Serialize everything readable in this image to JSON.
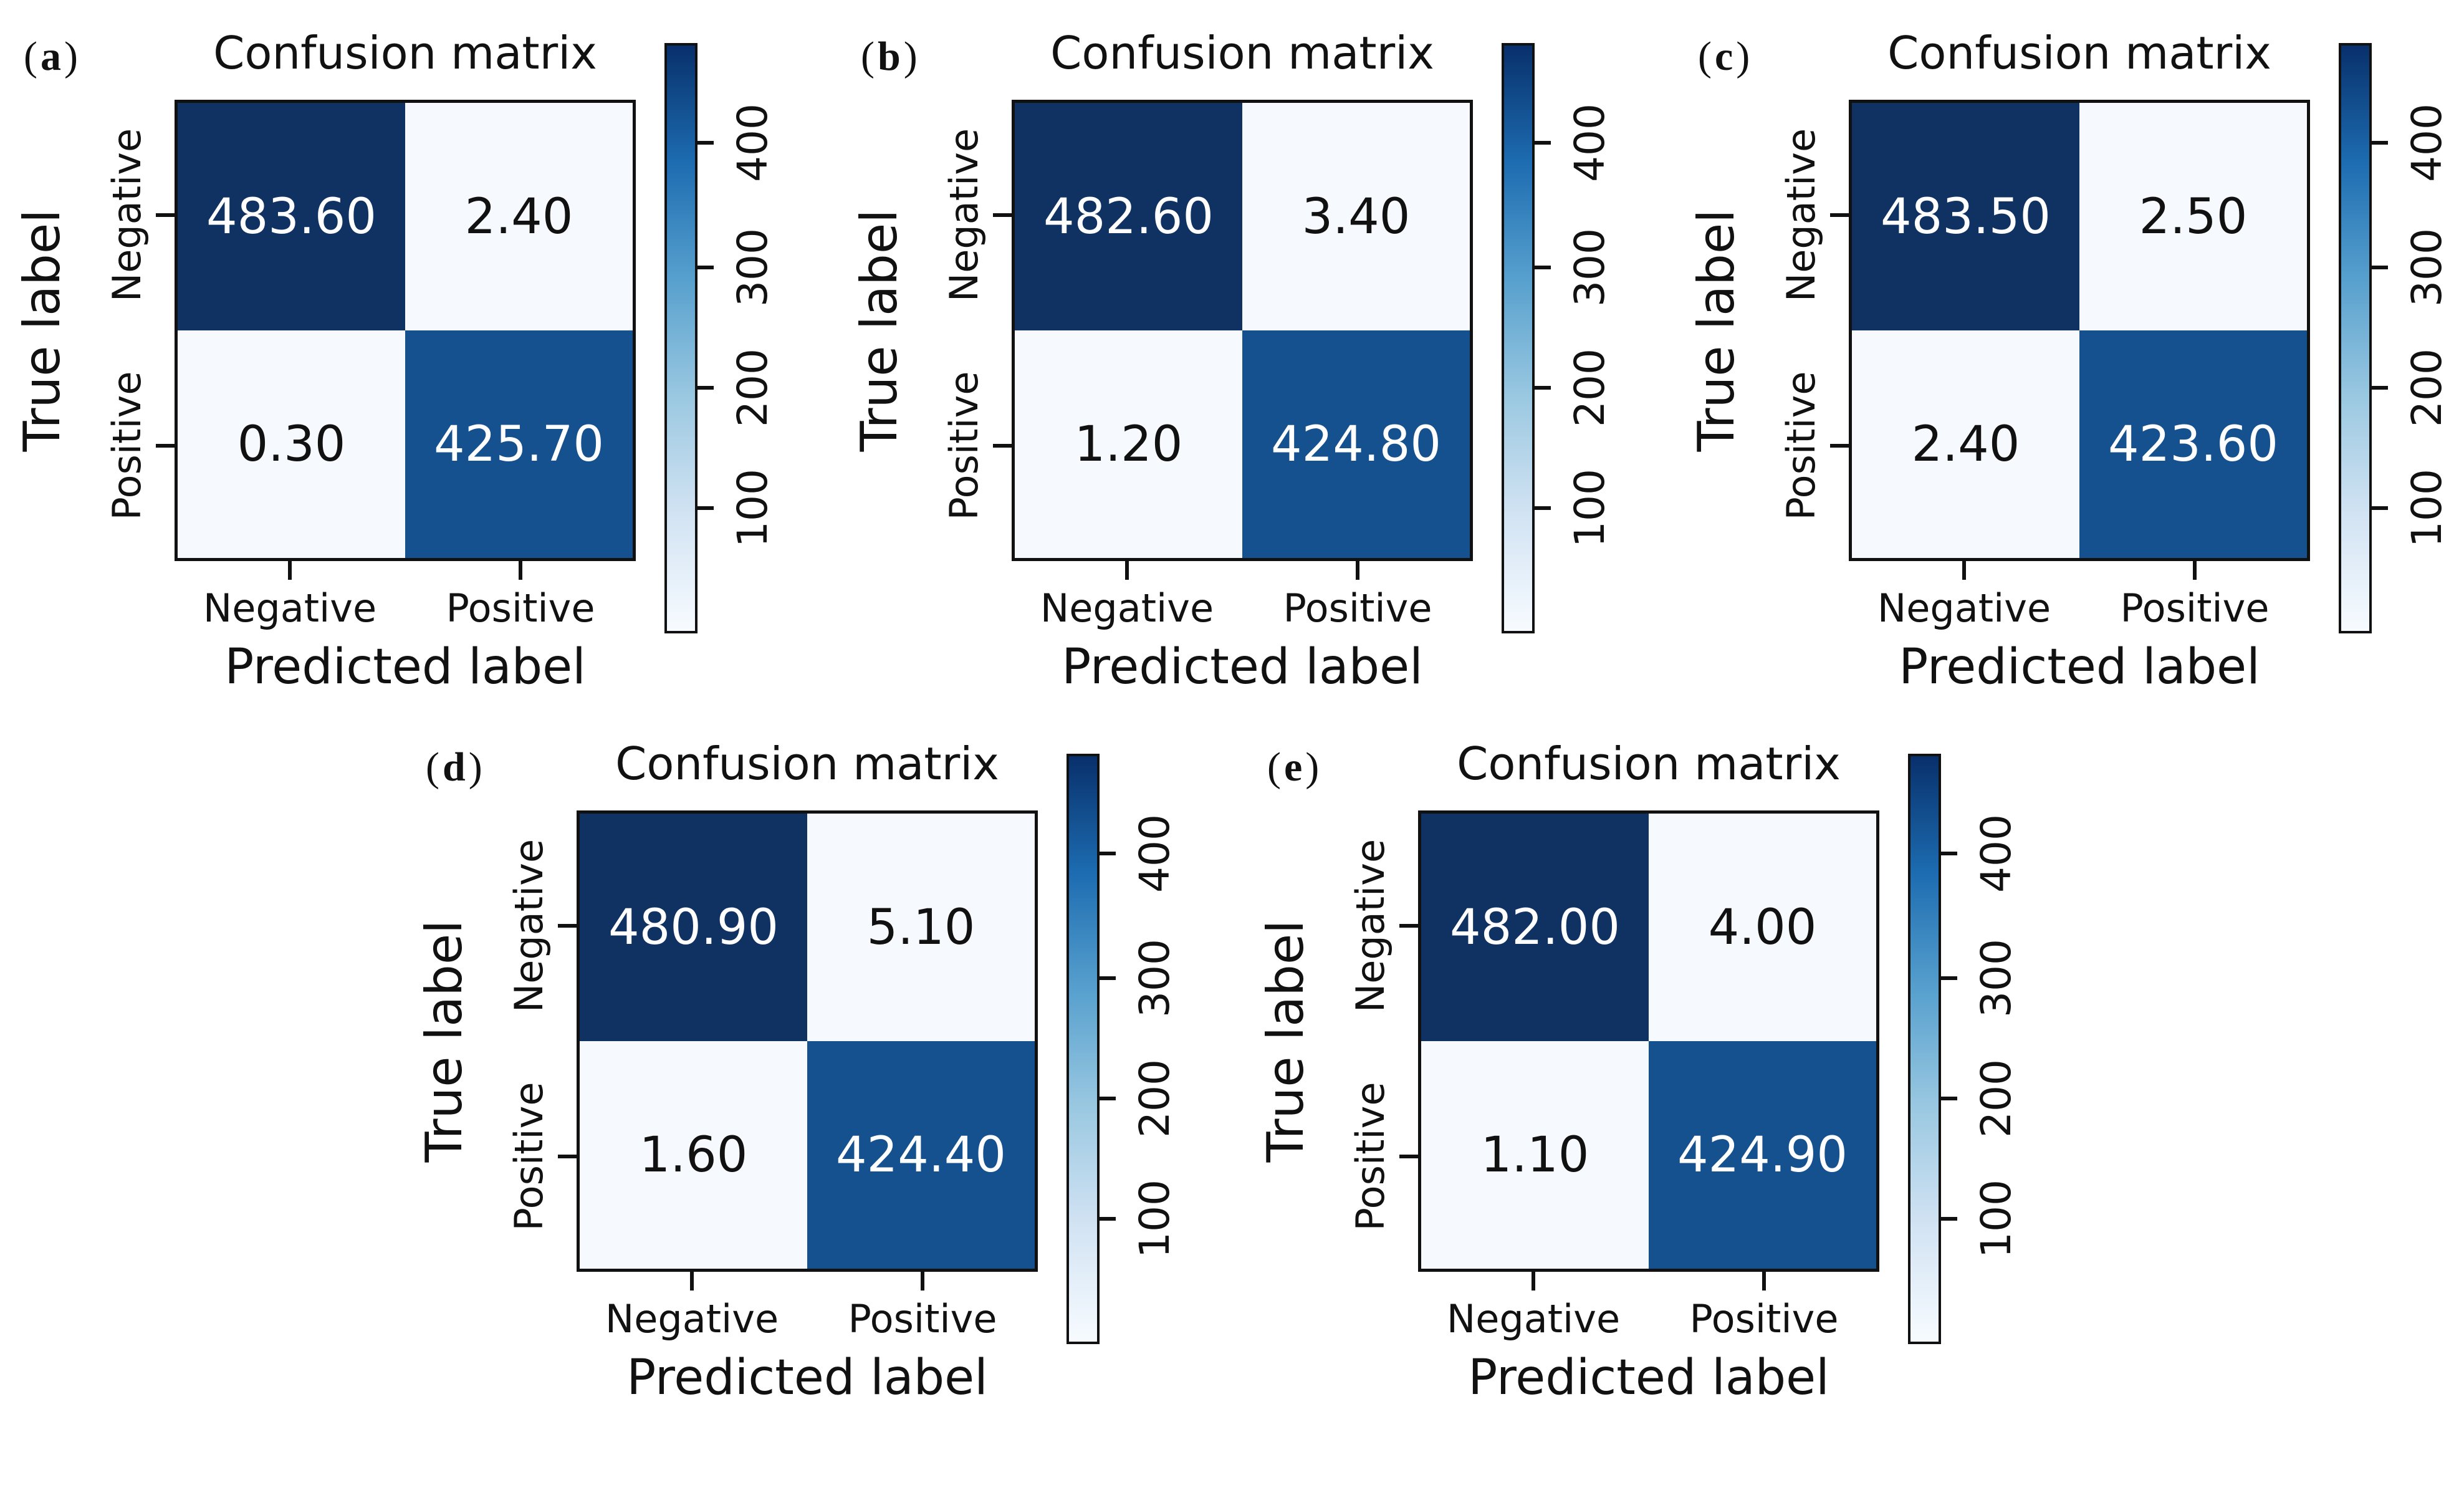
{
  "shared": {
    "title": "Confusion matrix",
    "xlabel": "Predicted label",
    "ylabel": "True label",
    "x_tick_labels": [
      "Negative",
      "Positive"
    ],
    "y_tick_labels": [
      "Negative",
      "Positive"
    ],
    "colorbar_tick_labels": [
      "100",
      "200",
      "300",
      "400"
    ]
  },
  "panels": [
    {
      "label_open": "(",
      "letter": "a",
      "label_close": ")",
      "cells": [
        [
          "483.60",
          "2.40"
        ],
        [
          "0.30",
          "425.70"
        ]
      ]
    },
    {
      "label_open": "(",
      "letter": "b",
      "label_close": ")",
      "cells": [
        [
          "482.60",
          "3.40"
        ],
        [
          "1.20",
          "424.80"
        ]
      ]
    },
    {
      "label_open": "(",
      "letter": "c",
      "label_close": ")",
      "cells": [
        [
          "483.50",
          "2.50"
        ],
        [
          "2.40",
          "423.60"
        ]
      ]
    },
    {
      "label_open": "(",
      "letter": "d",
      "label_close": ")",
      "cells": [
        [
          "480.90",
          "5.10"
        ],
        [
          "1.60",
          "424.40"
        ]
      ]
    },
    {
      "label_open": "(",
      "letter": "e",
      "label_close": ")",
      "cells": [
        [
          "482.00",
          "4.00"
        ],
        [
          "1.10",
          "424.90"
        ]
      ]
    }
  ],
  "colors": {
    "cell_dark": "#0f3263",
    "cell_mid": "#15508f",
    "cell_light": "#f6f9fd",
    "text_on_dark": "#ffffff",
    "text_on_light": "#111111",
    "cb_0": "#f7fbff",
    "cb_20": "#d2e3f3",
    "cb_40": "#9ac8e1",
    "cb_60": "#57a0ce",
    "cb_80": "#1d6cb1",
    "cb_100": "#08306b"
  },
  "chart_data": [
    {
      "type": "heatmap",
      "panel": "a",
      "title": "Confusion matrix",
      "xlabel": "Predicted label",
      "ylabel": "True label",
      "x_categories": [
        "Negative",
        "Positive"
      ],
      "y_categories": [
        "Negative",
        "Positive"
      ],
      "values": [
        [
          483.6,
          2.4
        ],
        [
          0.3,
          425.7
        ]
      ],
      "colormap": "Blues",
      "colorbar_ticks": [
        100,
        200,
        300,
        400
      ],
      "colorbar_range": [
        0,
        486
      ],
      "legend_position": "right-colorbar",
      "grid": false
    },
    {
      "type": "heatmap",
      "panel": "b",
      "title": "Confusion matrix",
      "xlabel": "Predicted label",
      "ylabel": "True label",
      "x_categories": [
        "Negative",
        "Positive"
      ],
      "y_categories": [
        "Negative",
        "Positive"
      ],
      "values": [
        [
          482.6,
          3.4
        ],
        [
          1.2,
          424.8
        ]
      ],
      "colormap": "Blues",
      "colorbar_ticks": [
        100,
        200,
        300,
        400
      ],
      "colorbar_range": [
        0,
        486
      ],
      "legend_position": "right-colorbar",
      "grid": false
    },
    {
      "type": "heatmap",
      "panel": "c",
      "title": "Confusion matrix",
      "xlabel": "Predicted label",
      "ylabel": "True label",
      "x_categories": [
        "Negative",
        "Positive"
      ],
      "y_categories": [
        "Negative",
        "Positive"
      ],
      "values": [
        [
          483.5,
          2.5
        ],
        [
          2.4,
          423.6
        ]
      ],
      "colormap": "Blues",
      "colorbar_ticks": [
        100,
        200,
        300,
        400
      ],
      "colorbar_range": [
        0,
        486
      ],
      "legend_position": "right-colorbar",
      "grid": false
    },
    {
      "type": "heatmap",
      "panel": "d",
      "title": "Confusion matrix",
      "xlabel": "Predicted label",
      "ylabel": "True label",
      "x_categories": [
        "Negative",
        "Positive"
      ],
      "y_categories": [
        "Negative",
        "Positive"
      ],
      "values": [
        [
          480.9,
          5.1
        ],
        [
          1.6,
          424.4
        ]
      ],
      "colormap": "Blues",
      "colorbar_ticks": [
        100,
        200,
        300,
        400
      ],
      "colorbar_range": [
        0,
        486
      ],
      "legend_position": "right-colorbar",
      "grid": false
    },
    {
      "type": "heatmap",
      "panel": "e",
      "title": "Confusion matrix",
      "xlabel": "Predicted label",
      "ylabel": "True label",
      "x_categories": [
        "Negative",
        "Positive"
      ],
      "y_categories": [
        "Negative",
        "Positive"
      ],
      "values": [
        [
          482.0,
          4.0
        ],
        [
          1.1,
          424.9
        ]
      ],
      "colormap": "Blues",
      "colorbar_ticks": [
        100,
        200,
        300,
        400
      ],
      "colorbar_range": [
        0,
        486
      ],
      "legend_position": "right-colorbar",
      "grid": false
    }
  ]
}
